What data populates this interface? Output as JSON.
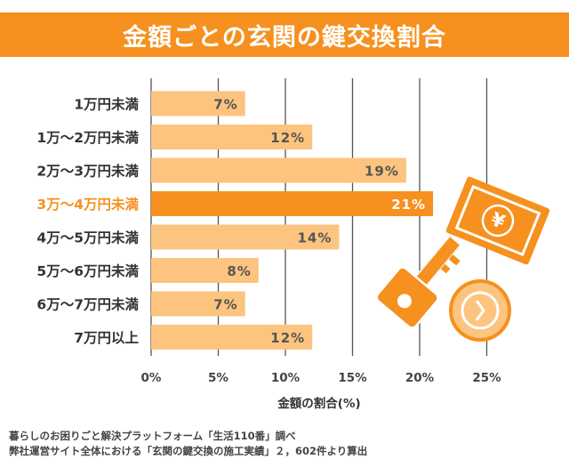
{
  "chart_data": {
    "type": "bar",
    "orientation": "horizontal",
    "title": "金額ごとの玄関の鍵交換割合",
    "categories": [
      "1万円未満",
      "1万～2万円未満",
      "2万～3万円未満",
      "3万～4万円未満",
      "4万～5万円未満",
      "5万～6万円未満",
      "6万～7万円未満",
      "7万円以上"
    ],
    "values": [
      7,
      12,
      19,
      21,
      14,
      8,
      7,
      12
    ],
    "value_labels": [
      "7%",
      "12%",
      "19%",
      "21%",
      "14%",
      "8%",
      "7%",
      "12%"
    ],
    "highlight_index": 3,
    "xlabel": "金額の割合(%)",
    "xlim": [
      0,
      25
    ],
    "xticks": [
      0,
      5,
      10,
      15,
      20,
      25
    ],
    "xtick_labels": [
      "0%",
      "5%",
      "10%",
      "15%",
      "20%",
      "25%"
    ],
    "grid": true
  },
  "colors": {
    "accent": "#f6901e",
    "bar": "#fcc47f",
    "highlight_bar": "#f6901e",
    "grid": "#555555"
  },
  "source": {
    "line1": "暮らしのお困りごと解決プラットフォーム「生活110番」調べ",
    "line2": "弊社運営サイト全体における「玄関の鍵交換の施工実績」２，602件より算出"
  },
  "illustration": {
    "icons": [
      "yen-bill-icon",
      "key-icon",
      "coin-icon"
    ],
    "bill_symbol": "¥"
  }
}
